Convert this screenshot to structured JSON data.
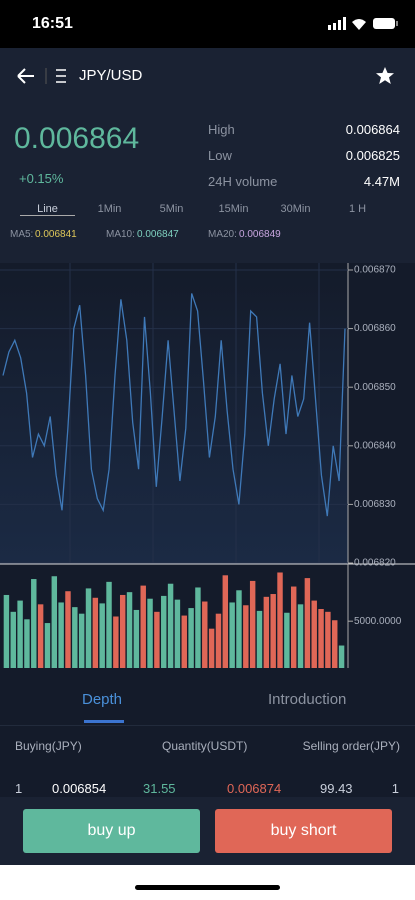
{
  "status_bar": {
    "time": "16:51"
  },
  "header": {
    "title": "JPY/USD"
  },
  "ticker": {
    "price": "0.006864",
    "change": "+0.15%",
    "stats": [
      {
        "label": "High",
        "value": "0.006864"
      },
      {
        "label": "Low",
        "value": "0.006825"
      },
      {
        "label": "24H volume",
        "value": "4.47M"
      }
    ]
  },
  "intervals": [
    "Line",
    "1Min",
    "5Min",
    "15Min",
    "30Min",
    "1 H"
  ],
  "ma": [
    {
      "label": "MA5:",
      "value": "0.006841"
    },
    {
      "label": "MA10:",
      "value": "0.006847"
    },
    {
      "label": "MA20:",
      "value": "0.006849"
    }
  ],
  "chart_data": [
    {
      "type": "line",
      "color": "#3f79b8",
      "values": [
        0.006852,
        0.006856,
        0.006858,
        0.006855,
        0.006849,
        0.006838,
        0.006842,
        0.00684,
        0.006845,
        0.006835,
        0.006829,
        0.006843,
        0.00686,
        0.006864,
        0.006852,
        0.006836,
        0.006831,
        0.006829,
        0.006836,
        0.006852,
        0.006865,
        0.006858,
        0.006844,
        0.006836,
        0.006862,
        0.006849,
        0.006833,
        0.006845,
        0.006858,
        0.006846,
        0.006834,
        0.006843,
        0.006866,
        0.006863,
        0.006851,
        0.006838,
        0.006845,
        0.006858,
        0.006846,
        0.006836,
        0.00683,
        0.006842,
        0.006863,
        0.006862,
        0.006849,
        0.00684,
        0.006848,
        0.006854,
        0.006842,
        0.006852,
        0.006845,
        0.006848,
        0.006861,
        0.006848,
        0.006835,
        0.006828,
        0.00684,
        0.006834,
        0.00686
      ],
      "ylim": [
        0.00682,
        0.00687
      ],
      "yticks": [
        {
          "value": 0.00687,
          "label": "0.006870"
        },
        {
          "value": 0.00686,
          "label": "0.006860"
        },
        {
          "value": 0.00685,
          "label": "0.006850"
        },
        {
          "value": 0.00684,
          "label": "0.006840"
        },
        {
          "value": 0.00683,
          "label": "0.006830"
        },
        {
          "value": 0.00682,
          "label": "0.006820"
        }
      ]
    },
    {
      "type": "bar",
      "values": [
        7800,
        6000,
        7200,
        5200,
        9500,
        6800,
        4800,
        9800,
        7000,
        8200,
        6500,
        5800,
        8500,
        7500,
        6900,
        9200,
        5500,
        7800,
        8100,
        6200,
        8800,
        7400,
        6000,
        7700,
        9000,
        7300,
        5600,
        6400,
        8600,
        7100,
        4200,
        5800,
        9900,
        7000,
        8300,
        6700,
        9300,
        6100,
        7600,
        7900,
        10200,
        5900,
        8700,
        6800,
        9600,
        7200,
        6300,
        6000,
        5100,
        2400
      ],
      "colors": [
        "#5fb89d",
        "#5fb89d",
        "#5fb89d",
        "#5fb89d",
        "#5fb89d",
        "#e06757",
        "#5fb89d",
        "#5fb89d",
        "#5fb89d",
        "#e06757",
        "#5fb89d",
        "#5fb89d",
        "#5fb89d",
        "#e06757",
        "#5fb89d",
        "#5fb89d",
        "#e06757",
        "#e06757",
        "#5fb89d",
        "#5fb89d",
        "#e06757",
        "#5fb89d",
        "#e06757",
        "#5fb89d",
        "#5fb89d",
        "#5fb89d",
        "#e06757",
        "#5fb89d",
        "#5fb89d",
        "#e06757",
        "#e06757",
        "#e06757",
        "#e06757",
        "#5fb89d",
        "#5fb89d",
        "#e06757",
        "#e06757",
        "#5fb89d",
        "#e06757",
        "#e06757",
        "#e06757",
        "#5fb89d",
        "#e06757",
        "#5fb89d",
        "#e06757",
        "#e06757",
        "#e06757",
        "#e06757",
        "#e06757",
        "#5fb89d"
      ],
      "ylim": [
        0,
        11000
      ],
      "yticks": [
        {
          "value": 5000,
          "label": "5000.0000"
        }
      ]
    }
  ],
  "tabs": [
    "Depth",
    "Introduction"
  ],
  "order_book": {
    "columns": [
      "Buying(JPY)",
      "Quantity(USDT)",
      "Selling order(JPY)"
    ],
    "rows": [
      [
        "1",
        "0.006854",
        "31.55",
        "0.006874",
        "99.43",
        "1"
      ]
    ]
  },
  "buttons": [
    "buy up",
    "buy short"
  ]
}
